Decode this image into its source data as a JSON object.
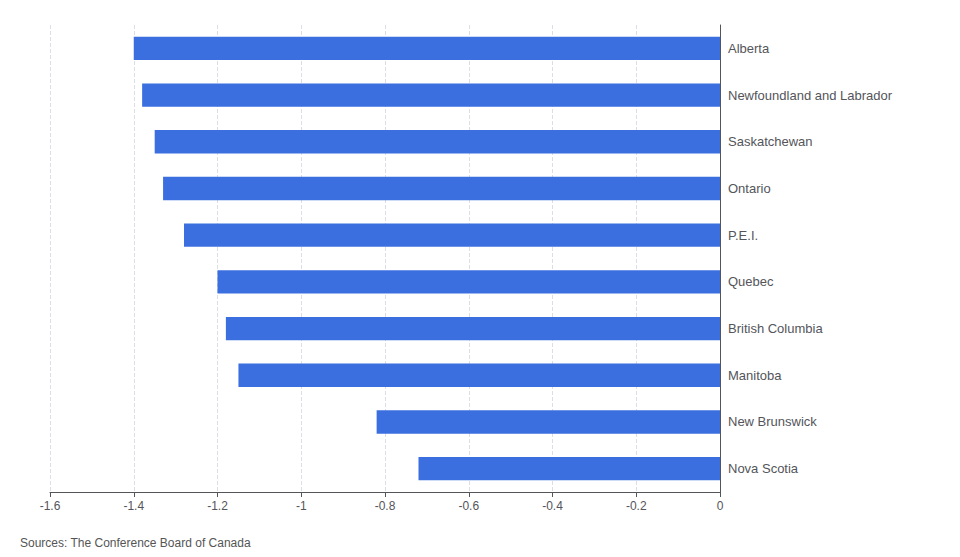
{
  "chart_data": {
    "type": "bar",
    "orientation": "horizontal",
    "categories": [
      "Nova Scotia",
      "New Brunswick",
      "Manitoba",
      "British Columbia",
      "Quebec",
      "P.E.I.",
      "Ontario",
      "Saskatchewan",
      "Newfoundland and Labrador",
      "Alberta"
    ],
    "values": [
      -0.72,
      -0.82,
      -1.15,
      -1.18,
      -1.2,
      -1.28,
      -1.33,
      -1.35,
      -1.38,
      -1.4
    ],
    "color": "#3B6FE0",
    "xlim": [
      -1.6,
      0.0
    ],
    "xticks": [
      -1.6,
      -1.4,
      -1.2,
      -1.0,
      -0.8,
      -0.6,
      -0.4,
      -0.2,
      0.0
    ],
    "grid": true,
    "source": "Sources: The Conference Board of Canada"
  }
}
